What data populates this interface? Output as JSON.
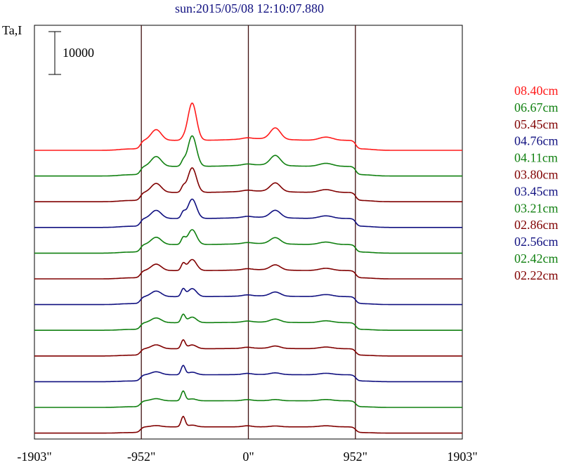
{
  "chart_data": {
    "type": "line",
    "title": "sun:2015/05/08 12:10:07.880",
    "ylabel": "Ta,I",
    "scale_bar_label": "10000",
    "scale_bar_value": 10000,
    "xlim": [
      -1903,
      1903
    ],
    "x_ticks": [
      {
        "value": -1903,
        "label": "-1903\""
      },
      {
        "value": -952,
        "label": "-952\""
      },
      {
        "value": 0,
        "label": "0\""
      },
      {
        "value": 952,
        "label": "952\""
      },
      {
        "value": 1903,
        "label": "1903\""
      }
    ],
    "vlines": [
      -952,
      0,
      952
    ],
    "legend_position": "right",
    "series": [
      {
        "name": "08.40cm",
        "color": "#ff1a1a",
        "offset": 0
      },
      {
        "name": "06.67cm",
        "color": "#108010",
        "offset": 1
      },
      {
        "name": "05.45cm",
        "color": "#800000",
        "offset": 2
      },
      {
        "name": "04.76cm",
        "color": "#101080",
        "offset": 3
      },
      {
        "name": "04.11cm",
        "color": "#108010",
        "offset": 4
      },
      {
        "name": "03.80cm",
        "color": "#800000",
        "offset": 5
      },
      {
        "name": "03.45cm",
        "color": "#101080",
        "offset": 6
      },
      {
        "name": "03.21cm",
        "color": "#108010",
        "offset": 7
      },
      {
        "name": "02.86cm",
        "color": "#800000",
        "offset": 8
      },
      {
        "name": "02.56cm",
        "color": "#101080",
        "offset": 9
      },
      {
        "name": "02.42cm",
        "color": "#108010",
        "offset": 10
      },
      {
        "name": "02.22cm",
        "color": "#800000",
        "offset": 11
      }
    ]
  }
}
